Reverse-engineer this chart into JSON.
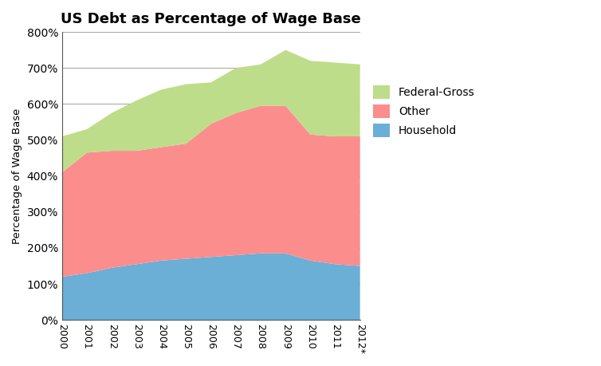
{
  "years": [
    "2000",
    "2001",
    "2002",
    "2003",
    "2004",
    "2005",
    "2006",
    "2007",
    "2008",
    "2009",
    "2010",
    "2011",
    "2012*"
  ],
  "household": [
    120,
    130,
    145,
    155,
    165,
    170,
    175,
    180,
    185,
    185,
    165,
    155,
    150
  ],
  "other": [
    290,
    335,
    325,
    315,
    315,
    320,
    370,
    395,
    410,
    410,
    350,
    355,
    360
  ],
  "federal_gross": [
    100,
    65,
    105,
    140,
    160,
    165,
    115,
    125,
    115,
    155,
    205,
    205,
    200
  ],
  "title": "US Debt as Percentage of Wage Base",
  "ylabel": "Percentage of Wage Base",
  "colors": {
    "household": "#6BAED6",
    "other": "#FC8D8D",
    "federal_gross": "#BEDD8A"
  },
  "ylim": [
    0,
    800
  ],
  "yticks": [
    0,
    100,
    200,
    300,
    400,
    500,
    600,
    700,
    800
  ],
  "background_color": "#FFFFFF",
  "figsize": [
    7.54,
    4.59
  ],
  "dpi": 100
}
